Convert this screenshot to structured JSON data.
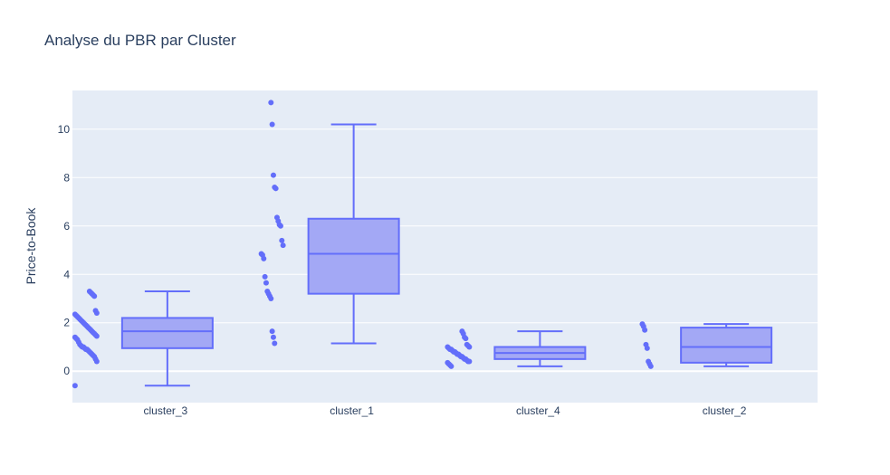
{
  "chart_data": {
    "type": "box",
    "title": "Analyse du PBR par Cluster",
    "xlabel": "",
    "ylabel": "Price-to-Book",
    "ylim": [
      -1.3,
      11.6
    ],
    "yticks": [
      0,
      2,
      4,
      6,
      8,
      10
    ],
    "grid": true,
    "legend": "none",
    "colors": {
      "plot_bg": "#E5ECF6",
      "grid": "#ffffff",
      "box_fill": "#A3A8F5",
      "box_line": "#636EFA",
      "points": "#636EFA",
      "text": "#2a3f5f"
    },
    "categories": [
      "cluster_3",
      "cluster_1",
      "cluster_4",
      "cluster_2"
    ],
    "boxes": [
      {
        "category": "cluster_3",
        "min": -0.6,
        "q1": 0.95,
        "median": 1.65,
        "q3": 2.2,
        "max": 3.3,
        "points": [
          -0.6,
          0.4,
          0.5,
          0.6,
          0.65,
          0.7,
          0.75,
          0.8,
          0.85,
          0.9,
          0.9,
          0.95,
          1.0,
          1.0,
          1.05,
          1.1,
          1.2,
          1.3,
          1.35,
          1.4,
          1.45,
          1.5,
          1.55,
          1.6,
          1.65,
          1.7,
          1.75,
          1.8,
          1.85,
          1.9,
          1.95,
          2.0,
          2.05,
          2.1,
          2.15,
          2.2,
          2.25,
          2.3,
          2.35,
          2.4,
          2.5,
          3.1,
          3.15,
          3.2,
          3.25,
          3.3
        ]
      },
      {
        "category": "cluster_1",
        "min": 1.15,
        "q1": 3.2,
        "median": 4.85,
        "q3": 6.3,
        "max": 10.2,
        "points": [
          1.15,
          1.4,
          1.65,
          3.0,
          3.1,
          3.2,
          3.3,
          3.65,
          3.9,
          4.65,
          4.8,
          4.85,
          5.2,
          5.4,
          6.0,
          6.05,
          6.2,
          6.35,
          7.55,
          7.6,
          8.1,
          10.2,
          11.1
        ]
      },
      {
        "category": "cluster_4",
        "min": 0.2,
        "q1": 0.5,
        "median": 0.75,
        "q3": 1.0,
        "max": 1.65,
        "points": [
          0.2,
          0.25,
          0.3,
          0.35,
          0.4,
          0.4,
          0.45,
          0.5,
          0.5,
          0.55,
          0.6,
          0.6,
          0.65,
          0.7,
          0.7,
          0.75,
          0.8,
          0.8,
          0.85,
          0.9,
          0.9,
          0.95,
          1.0,
          1.0,
          1.05,
          1.1,
          1.35,
          1.4,
          1.55,
          1.65
        ]
      },
      {
        "category": "cluster_2",
        "min": 0.2,
        "q1": 0.35,
        "median": 1.0,
        "q3": 1.8,
        "max": 1.95,
        "points": [
          0.2,
          0.3,
          0.4,
          0.95,
          1.1,
          1.7,
          1.85,
          1.95
        ]
      }
    ]
  }
}
